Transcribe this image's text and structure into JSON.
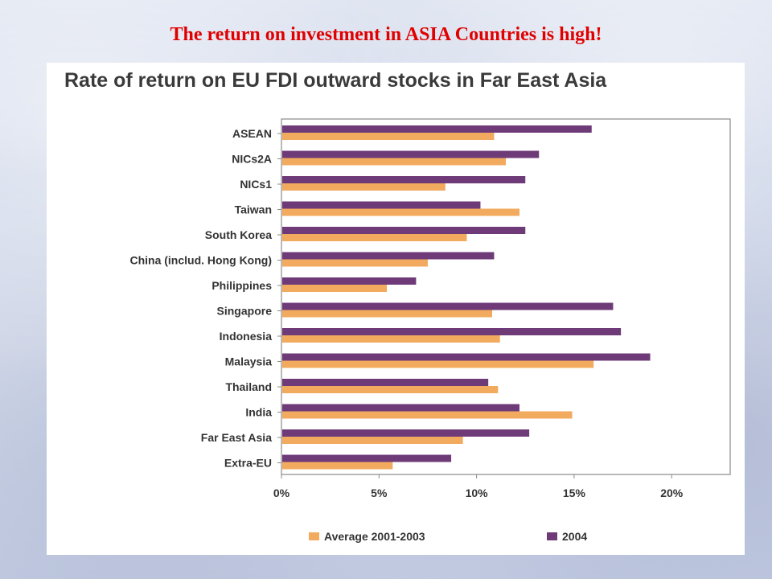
{
  "slide": {
    "title": "The return on investment in ASIA Countries is high!"
  },
  "colors": {
    "series_2004": "#6e3a78",
    "series_avg": "#f2aa5e",
    "title_red": "#e00000"
  },
  "chart_data": {
    "type": "bar",
    "orientation": "horizontal",
    "title": "Rate of return on EU FDI outward stocks in Far East Asia",
    "categories": [
      "ASEAN",
      "NICs2A",
      "NICs1",
      "Taiwan",
      "South Korea",
      "China (includ. Hong Kong)",
      "Philippines",
      "Singapore",
      "Indonesia",
      "Malaysia",
      "Thailand",
      "India",
      "Far East Asia",
      "Extra-EU"
    ],
    "series": [
      {
        "name": "2004",
        "values": [
          15.9,
          13.2,
          12.5,
          10.2,
          12.5,
          10.9,
          6.9,
          17.0,
          17.4,
          18.9,
          10.6,
          12.2,
          12.7,
          8.7
        ]
      },
      {
        "name": "Average 2001-2003",
        "values": [
          10.9,
          11.5,
          8.4,
          12.2,
          9.5,
          7.5,
          5.4,
          10.8,
          11.2,
          16.0,
          11.1,
          14.9,
          9.3,
          5.7
        ]
      }
    ],
    "xlim": [
      0,
      23
    ],
    "xticks": [
      "0%",
      "5%",
      "10%",
      "15%",
      "20%"
    ],
    "legend_position": "bottom",
    "grid": false
  }
}
